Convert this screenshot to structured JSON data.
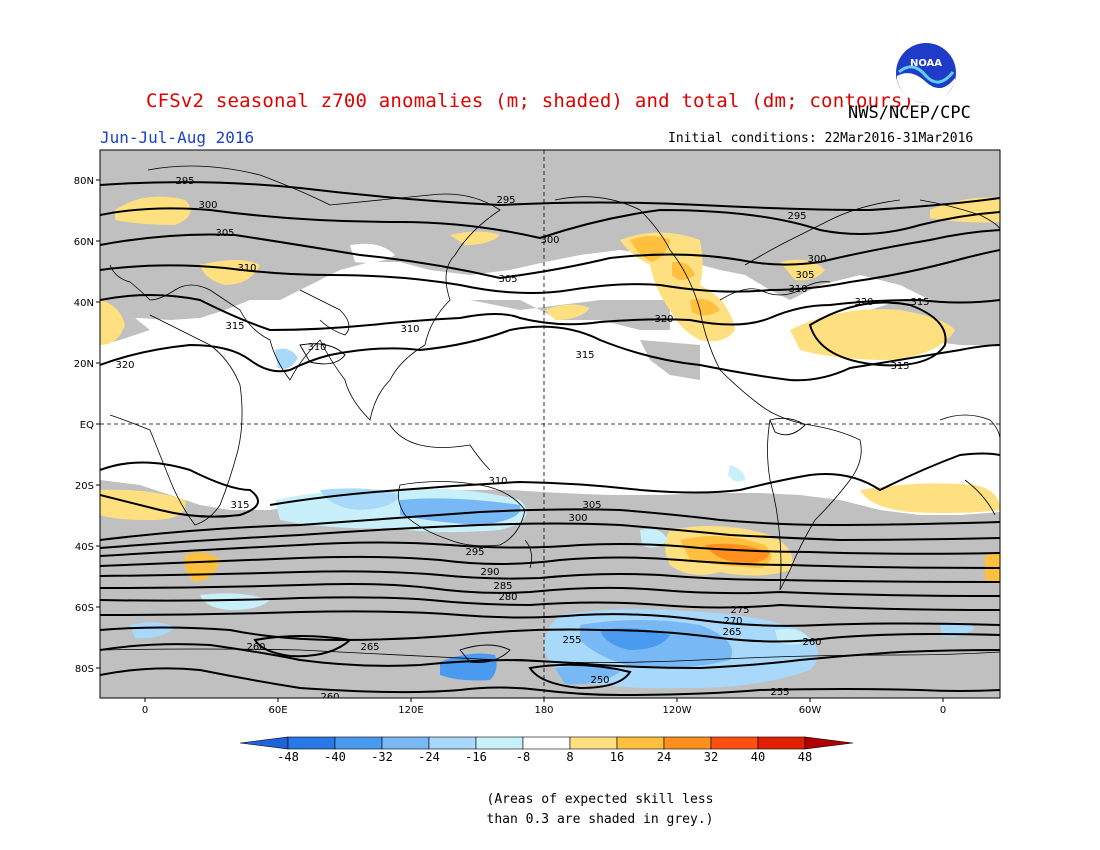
{
  "title": "CFSv2 seasonal z700 anomalies (m; shaded) and total (dm; contours)",
  "agency": "NWS/NCEP/CPC",
  "season": "Jun-Jul-Aug 2016",
  "initial_conditions": "Initial conditions: 22Mar2016-31Mar2016",
  "logo": {
    "icon": "noaa-logo-icon",
    "text": "NOAA"
  },
  "axes": {
    "lat_labels": [
      "80N",
      "60N",
      "40N",
      "20N",
      "EQ",
      "20S",
      "40S",
      "60S",
      "80S"
    ],
    "lon_labels": [
      "0",
      "60E",
      "120E",
      "180",
      "120W",
      "60W",
      "0"
    ]
  },
  "colorbar": {
    "ticks": [
      "-48",
      "-40",
      "-32",
      "-24",
      "-16",
      "-8",
      "8",
      "16",
      "24",
      "32",
      "40",
      "48"
    ],
    "colors": [
      "#1e64d8",
      "#2878e6",
      "#4a9af0",
      "#78b8f5",
      "#a8d8fa",
      "#c8f0fa",
      "#ffffff",
      "#ffe080",
      "#ffc040",
      "#ff9020",
      "#ff5010",
      "#e02000",
      "#b00000"
    ]
  },
  "contour_labels": [
    "295",
    "300",
    "305",
    "310",
    "315",
    "320",
    "310",
    "295",
    "300",
    "305",
    "310",
    "315",
    "320",
    "295",
    "300",
    "305",
    "310",
    "315",
    "320",
    "315",
    "310",
    "300",
    "295",
    "305",
    "315",
    "290",
    "285",
    "280",
    "275",
    "270",
    "265",
    "260",
    "255",
    "250",
    "260",
    "265",
    "255",
    "260"
  ],
  "note": [
    "(Areas of expected skill less",
    "than 0.3 are shaded in grey.)"
  ],
  "colors": {
    "grey_low_skill": "#c0c0c0",
    "coast": "#000000",
    "title": "#e00000",
    "season": "#1a3fd0"
  }
}
